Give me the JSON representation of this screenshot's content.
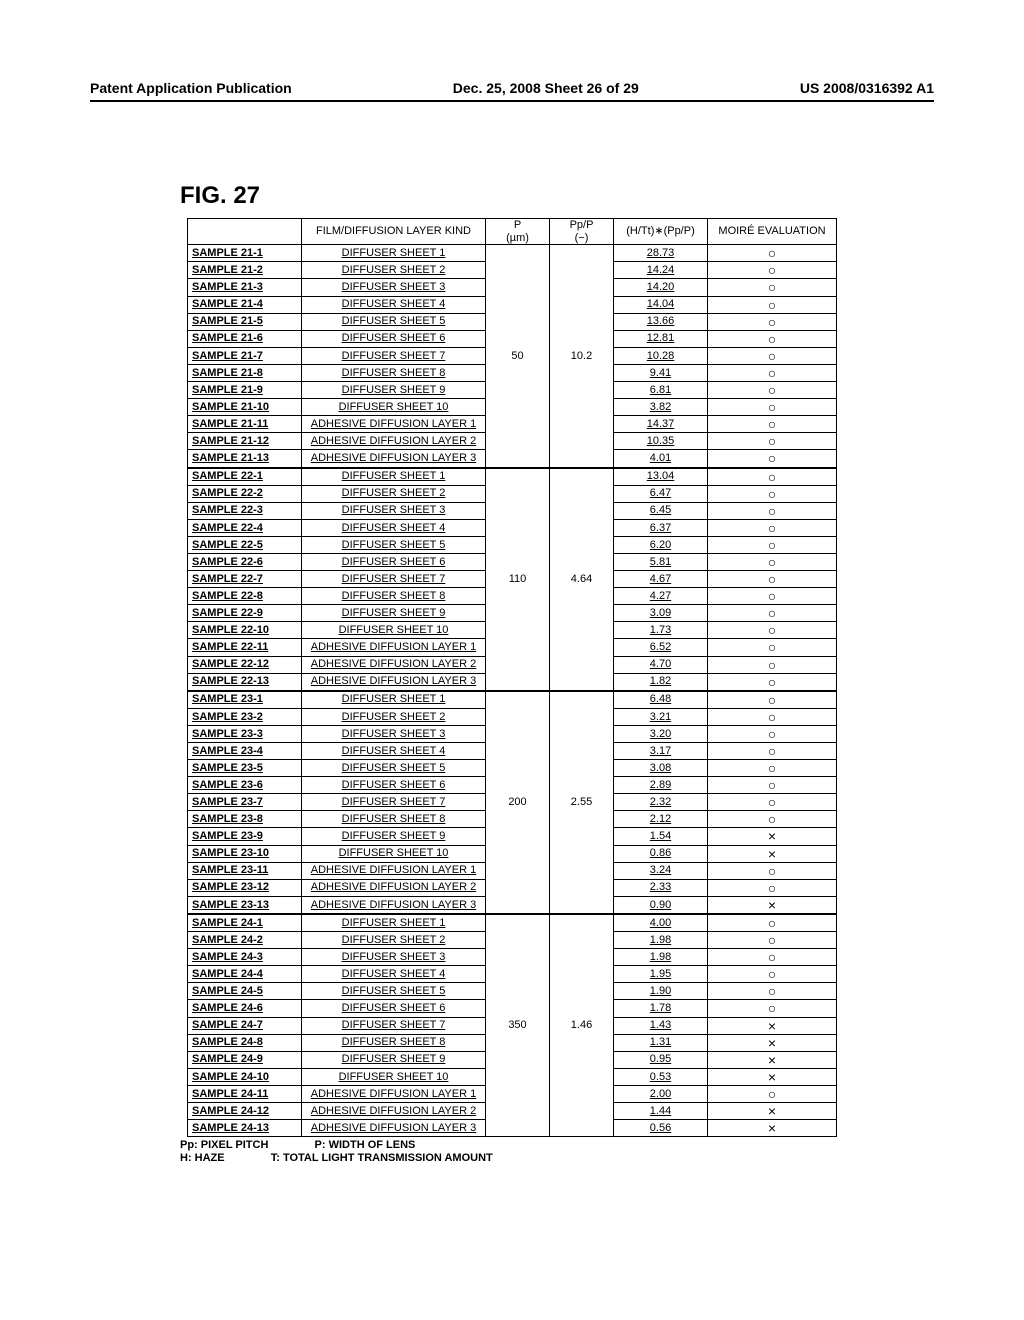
{
  "header": {
    "left": "Patent Application Publication",
    "center": "Dec. 25, 2008  Sheet 26 of 29",
    "right": "US 2008/0316392 A1"
  },
  "figure_label": "FIG. 27",
  "columns": {
    "c0": "",
    "c1": "FILM/DIFFUSION LAYER KIND",
    "c2_top": "P",
    "c2_bot": "(µm)",
    "c3_top": "Pp/P",
    "c3_bot": "(−)",
    "c4": "(H/Tt)∗(Pp/P)",
    "c5": "MOIRÉ EVALUATION"
  },
  "groups": [
    {
      "p": "50",
      "pp_over_p": "10.2",
      "rows": [
        {
          "sample": "SAMPLE 21-1",
          "film": "DIFFUSER SHEET 1",
          "val": "28.73",
          "moire": "○"
        },
        {
          "sample": "SAMPLE 21-2",
          "film": "DIFFUSER SHEET 2",
          "val": "14.24",
          "moire": "○"
        },
        {
          "sample": "SAMPLE 21-3",
          "film": "DIFFUSER SHEET 3",
          "val": "14.20",
          "moire": "○"
        },
        {
          "sample": "SAMPLE 21-4",
          "film": "DIFFUSER SHEET 4",
          "val": "14.04",
          "moire": "○"
        },
        {
          "sample": "SAMPLE 21-5",
          "film": "DIFFUSER SHEET 5",
          "val": "13.66",
          "moire": "○"
        },
        {
          "sample": "SAMPLE 21-6",
          "film": "DIFFUSER SHEET 6",
          "val": "12.81",
          "moire": "○"
        },
        {
          "sample": "SAMPLE 21-7",
          "film": "DIFFUSER SHEET 7",
          "val": "10.28",
          "moire": "○"
        },
        {
          "sample": "SAMPLE 21-8",
          "film": "DIFFUSER SHEET 8",
          "val": "9.41",
          "moire": "○"
        },
        {
          "sample": "SAMPLE 21-9",
          "film": "DIFFUSER SHEET 9",
          "val": "6.81",
          "moire": "○"
        },
        {
          "sample": "SAMPLE 21-10",
          "film": "DIFFUSER SHEET 10",
          "val": "3.82",
          "moire": "○"
        },
        {
          "sample": "SAMPLE 21-11",
          "film": "ADHESIVE DIFFUSION LAYER 1",
          "val": "14.37",
          "moire": "○"
        },
        {
          "sample": "SAMPLE 21-12",
          "film": "ADHESIVE DIFFUSION LAYER 2",
          "val": "10.35",
          "moire": "○"
        },
        {
          "sample": "SAMPLE 21-13",
          "film": "ADHESIVE DIFFUSION LAYER 3",
          "val": "4.01",
          "moire": "○"
        }
      ]
    },
    {
      "p": "110",
      "pp_over_p": "4.64",
      "rows": [
        {
          "sample": "SAMPLE 22-1",
          "film": "DIFFUSER SHEET 1",
          "val": "13.04",
          "moire": "○"
        },
        {
          "sample": "SAMPLE 22-2",
          "film": "DIFFUSER SHEET 2",
          "val": "6.47",
          "moire": "○"
        },
        {
          "sample": "SAMPLE 22-3",
          "film": "DIFFUSER SHEET 3",
          "val": "6.45",
          "moire": "○"
        },
        {
          "sample": "SAMPLE 22-4",
          "film": "DIFFUSER SHEET 4",
          "val": "6.37",
          "moire": "○"
        },
        {
          "sample": "SAMPLE 22-5",
          "film": "DIFFUSER SHEET 5",
          "val": "6.20",
          "moire": "○"
        },
        {
          "sample": "SAMPLE 22-6",
          "film": "DIFFUSER SHEET 6",
          "val": "5.81",
          "moire": "○"
        },
        {
          "sample": "SAMPLE 22-7",
          "film": "DIFFUSER SHEET 7",
          "val": "4.67",
          "moire": "○"
        },
        {
          "sample": "SAMPLE 22-8",
          "film": "DIFFUSER SHEET 8",
          "val": "4.27",
          "moire": "○"
        },
        {
          "sample": "SAMPLE 22-9",
          "film": "DIFFUSER SHEET 9",
          "val": "3.09",
          "moire": "○"
        },
        {
          "sample": "SAMPLE 22-10",
          "film": "DIFFUSER SHEET 10",
          "val": "1.73",
          "moire": "○"
        },
        {
          "sample": "SAMPLE 22-11",
          "film": "ADHESIVE DIFFUSION LAYER 1",
          "val": "6.52",
          "moire": "○"
        },
        {
          "sample": "SAMPLE 22-12",
          "film": "ADHESIVE DIFFUSION LAYER 2",
          "val": "4.70",
          "moire": "○"
        },
        {
          "sample": "SAMPLE 22-13",
          "film": "ADHESIVE DIFFUSION LAYER 3",
          "val": "1.82",
          "moire": "○"
        }
      ]
    },
    {
      "p": "200",
      "pp_over_p": "2.55",
      "rows": [
        {
          "sample": "SAMPLE 23-1",
          "film": "DIFFUSER SHEET 1",
          "val": "6.48",
          "moire": "○"
        },
        {
          "sample": "SAMPLE 23-2",
          "film": "DIFFUSER SHEET 2",
          "val": "3.21",
          "moire": "○"
        },
        {
          "sample": "SAMPLE 23-3",
          "film": "DIFFUSER SHEET 3",
          "val": "3.20",
          "moire": "○"
        },
        {
          "sample": "SAMPLE 23-4",
          "film": "DIFFUSER SHEET 4",
          "val": "3.17",
          "moire": "○"
        },
        {
          "sample": "SAMPLE 23-5",
          "film": "DIFFUSER SHEET 5",
          "val": "3.08",
          "moire": "○"
        },
        {
          "sample": "SAMPLE 23-6",
          "film": "DIFFUSER SHEET 6",
          "val": "2.89",
          "moire": "○"
        },
        {
          "sample": "SAMPLE 23-7",
          "film": "DIFFUSER SHEET 7",
          "val": "2.32",
          "moire": "○"
        },
        {
          "sample": "SAMPLE 23-8",
          "film": "DIFFUSER SHEET 8",
          "val": "2.12",
          "moire": "○"
        },
        {
          "sample": "SAMPLE 23-9",
          "film": "DIFFUSER SHEET 9",
          "val": "1.54",
          "moire": "×"
        },
        {
          "sample": "SAMPLE 23-10",
          "film": "DIFFUSER SHEET 10",
          "val": "0.86",
          "moire": "×"
        },
        {
          "sample": "SAMPLE 23-11",
          "film": "ADHESIVE DIFFUSION LAYER 1",
          "val": "3.24",
          "moire": "○"
        },
        {
          "sample": "SAMPLE 23-12",
          "film": "ADHESIVE DIFFUSION LAYER 2",
          "val": "2.33",
          "moire": "○"
        },
        {
          "sample": "SAMPLE 23-13",
          "film": "ADHESIVE DIFFUSION LAYER 3",
          "val": "0.90",
          "moire": "×"
        }
      ]
    },
    {
      "p": "350",
      "pp_over_p": "1.46",
      "rows": [
        {
          "sample": "SAMPLE 24-1",
          "film": "DIFFUSER SHEET 1",
          "val": "4.00",
          "moire": "○"
        },
        {
          "sample": "SAMPLE 24-2",
          "film": "DIFFUSER SHEET 2",
          "val": "1.98",
          "moire": "○"
        },
        {
          "sample": "SAMPLE 24-3",
          "film": "DIFFUSER SHEET 3",
          "val": "1.98",
          "moire": "○"
        },
        {
          "sample": "SAMPLE 24-4",
          "film": "DIFFUSER SHEET 4",
          "val": "1.95",
          "moire": "○"
        },
        {
          "sample": "SAMPLE 24-5",
          "film": "DIFFUSER SHEET 5",
          "val": "1.90",
          "moire": "○"
        },
        {
          "sample": "SAMPLE 24-6",
          "film": "DIFFUSER SHEET 6",
          "val": "1.78",
          "moire": "○"
        },
        {
          "sample": "SAMPLE 24-7",
          "film": "DIFFUSER SHEET 7",
          "val": "1.43",
          "moire": "×"
        },
        {
          "sample": "SAMPLE 24-8",
          "film": "DIFFUSER SHEET 8",
          "val": "1.31",
          "moire": "×"
        },
        {
          "sample": "SAMPLE 24-9",
          "film": "DIFFUSER SHEET 9",
          "val": "0.95",
          "moire": "×"
        },
        {
          "sample": "SAMPLE 24-10",
          "film": "DIFFUSER SHEET 10",
          "val": "0.53",
          "moire": "×"
        },
        {
          "sample": "SAMPLE 24-11",
          "film": "ADHESIVE DIFFUSION LAYER 1",
          "val": "2.00",
          "moire": "○"
        },
        {
          "sample": "SAMPLE 24-12",
          "film": "ADHESIVE DIFFUSION LAYER 2",
          "val": "1.44",
          "moire": "×"
        },
        {
          "sample": "SAMPLE 24-13",
          "film": "ADHESIVE DIFFUSION LAYER 3",
          "val": "0.56",
          "moire": "×"
        }
      ]
    }
  ],
  "legend": {
    "line1a": "Pp: PIXEL PITCH",
    "line1b": "P: WIDTH OF LENS",
    "line2a": "H: HAZE",
    "line2b": "T: TOTAL LIGHT TRANSMISSION AMOUNT"
  }
}
